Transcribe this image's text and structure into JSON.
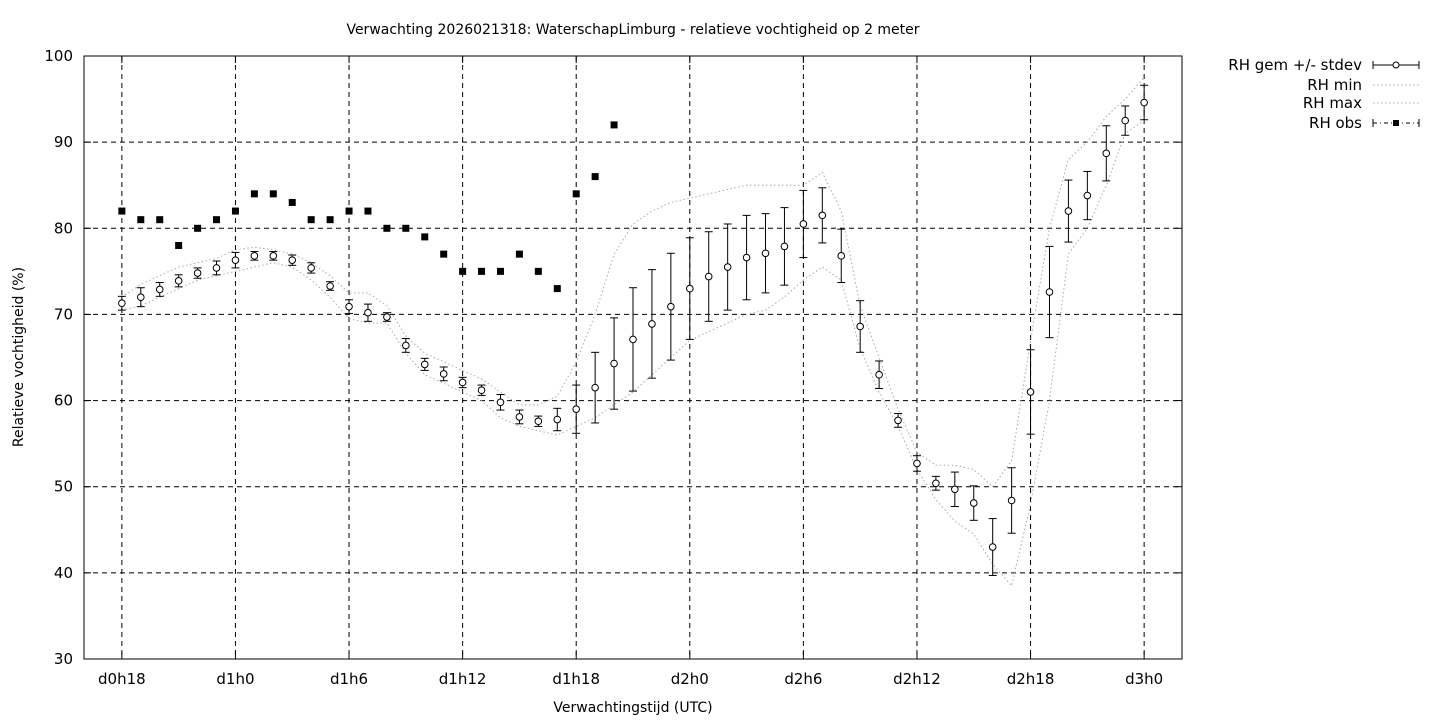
{
  "chart_data": {
    "type": "scatter",
    "title": "Verwachting 2026021318: WaterschapLimburg - relatieve vochtigheid op 2 meter",
    "xlabel": "Verwachtingstijd (UTC)",
    "ylabel": "Relatieve vochtigheid (%)",
    "xlim": [
      16,
      74
    ],
    "ylim": [
      30,
      100
    ],
    "grid": true,
    "legend_position": "outside-right",
    "x_ticks": [
      {
        "x": 18,
        "label": "d0h18"
      },
      {
        "x": 24,
        "label": "d1h0"
      },
      {
        "x": 30,
        "label": "d1h6"
      },
      {
        "x": 36,
        "label": "d1h12"
      },
      {
        "x": 42,
        "label": "d1h18"
      },
      {
        "x": 48,
        "label": "d2h0"
      },
      {
        "x": 54,
        "label": "d2h6"
      },
      {
        "x": 60,
        "label": "d2h12"
      },
      {
        "x": 66,
        "label": "d2h18"
      },
      {
        "x": 72,
        "label": "d3h0"
      }
    ],
    "y_ticks": [
      30,
      40,
      50,
      60,
      70,
      80,
      90,
      100
    ],
    "series": [
      {
        "name": "RH gem +/- stdev",
        "style": "errorbars",
        "x": [
          18,
          19,
          20,
          21,
          22,
          23,
          24,
          25,
          26,
          27,
          28,
          29,
          30,
          31,
          32,
          33,
          34,
          35,
          36,
          37,
          38,
          39,
          40,
          41,
          42,
          43,
          44,
          45,
          46,
          47,
          48,
          49,
          50,
          51,
          52,
          53,
          54,
          55,
          56,
          57,
          58,
          59,
          60,
          61,
          62,
          63,
          64,
          65,
          66,
          67,
          68,
          69,
          70,
          71,
          72
        ],
        "y": [
          71.3,
          72.0,
          72.9,
          73.9,
          74.8,
          75.4,
          76.3,
          76.8,
          76.8,
          76.3,
          75.4,
          73.3,
          70.9,
          70.2,
          69.7,
          66.4,
          64.2,
          63.1,
          62.1,
          61.2,
          59.8,
          58.1,
          57.6,
          57.8,
          59.0,
          61.5,
          64.3,
          67.1,
          68.9,
          70.9,
          73.0,
          74.4,
          75.5,
          76.6,
          77.1,
          77.9,
          80.5,
          81.5,
          76.8,
          68.6,
          63.0,
          57.7,
          52.7,
          50.4,
          49.7,
          48.1,
          43.0,
          48.4,
          61.0,
          72.6,
          82.0,
          83.8,
          88.7,
          92.5,
          94.6
        ],
        "err": [
          0.8,
          1.1,
          0.8,
          0.7,
          0.6,
          0.8,
          0.9,
          0.5,
          0.5,
          0.6,
          0.6,
          0.5,
          0.8,
          1.0,
          0.5,
          0.8,
          0.7,
          0.8,
          0.6,
          0.6,
          0.9,
          0.8,
          0.6,
          1.3,
          2.8,
          4.1,
          5.3,
          6.0,
          6.3,
          6.2,
          5.9,
          5.2,
          5.0,
          4.9,
          4.6,
          4.5,
          3.9,
          3.2,
          3.1,
          3.0,
          1.6,
          0.8,
          0.9,
          0.8,
          2.0,
          2.0,
          3.3,
          3.8,
          4.9,
          5.3,
          3.6,
          2.8,
          3.2,
          1.7,
          2.0
        ]
      },
      {
        "name": "RH min",
        "style": "dotted",
        "x": [
          18,
          19,
          20,
          21,
          22,
          23,
          24,
          25,
          26,
          27,
          28,
          29,
          30,
          31,
          32,
          33,
          34,
          35,
          36,
          37,
          38,
          39,
          40,
          41,
          42,
          43,
          44,
          45,
          46,
          47,
          48,
          49,
          50,
          51,
          52,
          53,
          54,
          55,
          56,
          57,
          58,
          59,
          60,
          61,
          62,
          63,
          64,
          65,
          66,
          67,
          68,
          69,
          70,
          71,
          72
        ],
        "y": [
          70.5,
          71.0,
          72.0,
          73.0,
          74.0,
          74.5,
          75.0,
          75.5,
          76.0,
          75.5,
          74.0,
          72.0,
          69.5,
          69.0,
          69.0,
          65.5,
          63.0,
          62.0,
          61.0,
          60.0,
          58.0,
          57.0,
          56.5,
          56.0,
          57.0,
          58.0,
          59.5,
          61.0,
          63.0,
          65.0,
          67.0,
          68.0,
          69.0,
          70.0,
          70.5,
          72.0,
          74.0,
          75.5,
          74.0,
          66.0,
          61.0,
          57.0,
          52.0,
          48.5,
          46.0,
          44.5,
          41.0,
          38.5,
          48.0,
          60.0,
          77.0,
          80.0,
          85.0,
          91.0,
          92.5
        ]
      },
      {
        "name": "RH max",
        "style": "dotted",
        "x": [
          18,
          19,
          20,
          21,
          22,
          23,
          24,
          25,
          26,
          27,
          28,
          29,
          30,
          31,
          32,
          33,
          34,
          35,
          36,
          37,
          38,
          39,
          40,
          41,
          42,
          43,
          44,
          45,
          46,
          47,
          48,
          49,
          50,
          51,
          52,
          53,
          54,
          55,
          56,
          57,
          58,
          59,
          60,
          61,
          62,
          63,
          64,
          65,
          66,
          67,
          68,
          69,
          70,
          71,
          72
        ],
        "y": [
          72.0,
          73.5,
          74.5,
          75.5,
          76.0,
          76.5,
          77.5,
          77.8,
          77.5,
          77.0,
          76.0,
          74.5,
          72.5,
          72.5,
          71.0,
          67.5,
          65.5,
          64.5,
          63.5,
          62.5,
          61.0,
          59.5,
          59.5,
          60.5,
          64.5,
          70.0,
          77.0,
          80.5,
          82.0,
          83.0,
          83.5,
          84.0,
          84.5,
          85.0,
          85.0,
          85.0,
          85.0,
          86.5,
          82.0,
          71.0,
          65.0,
          59.0,
          54.0,
          52.5,
          52.5,
          52.0,
          50.0,
          53.0,
          67.0,
          80.0,
          88.0,
          90.0,
          93.0,
          95.0,
          97.5
        ]
      },
      {
        "name": "RH obs",
        "style": "squares",
        "x": [
          18,
          19,
          20,
          21,
          22,
          23,
          24,
          25,
          26,
          27,
          28,
          29,
          30,
          31,
          32,
          33,
          34,
          35,
          36,
          37,
          38,
          39,
          40,
          41,
          42,
          43,
          44
        ],
        "y": [
          82,
          81,
          81,
          78,
          80,
          81,
          82,
          84,
          84,
          83,
          81,
          81,
          82,
          82,
          80,
          80,
          79,
          77,
          75,
          75,
          75,
          77,
          75,
          73,
          84,
          86,
          92
        ]
      }
    ]
  }
}
